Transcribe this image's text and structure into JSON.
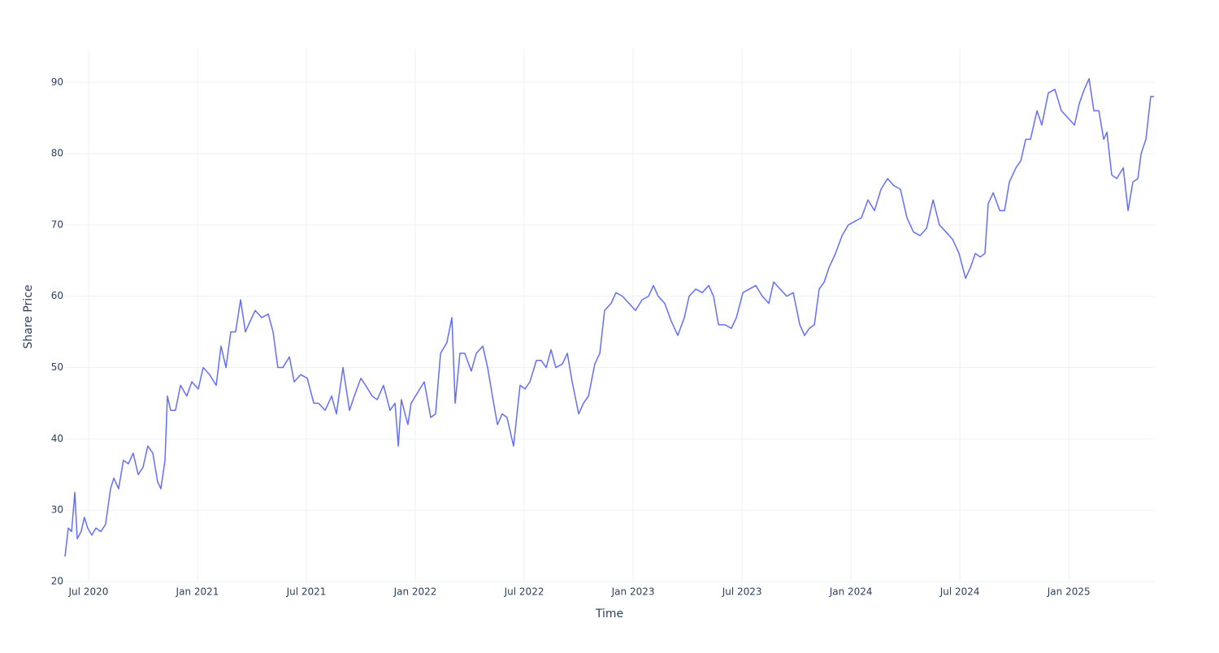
{
  "chart_data": {
    "type": "line",
    "x_label": "Time",
    "y_label": "Share Price",
    "color": "#636efa",
    "grid": true,
    "xlim": [
      2020.392,
      2025.391
    ],
    "xticks": [
      {
        "value": 2020.5,
        "label": "Jul 2020"
      },
      {
        "value": 2021.0,
        "label": "Jan 2021"
      },
      {
        "value": 2021.5,
        "label": "Jul 2021"
      },
      {
        "value": 2022.0,
        "label": "Jan 2022"
      },
      {
        "value": 2022.5,
        "label": "Jul 2022"
      },
      {
        "value": 2023.0,
        "label": "Jan 2023"
      },
      {
        "value": 2023.5,
        "label": "Jul 2023"
      },
      {
        "value": 2024.0,
        "label": "Jan 2024"
      },
      {
        "value": 2024.5,
        "label": "Jul 2024"
      },
      {
        "value": 2025.0,
        "label": "Jan 2025"
      }
    ],
    "ylim": [
      20,
      94.7
    ],
    "yticks": [
      20,
      30,
      40,
      50,
      60,
      70,
      80,
      90
    ],
    "x": [
      2020.392,
      2020.407,
      2020.422,
      2020.437,
      2020.448,
      2020.466,
      2020.481,
      2020.496,
      2020.515,
      2020.534,
      2020.556,
      2020.578,
      2020.601,
      2020.616,
      2020.638,
      2020.66,
      2020.683,
      2020.705,
      2020.728,
      2020.75,
      2020.772,
      2020.795,
      2020.817,
      2020.832,
      2020.851,
      2020.862,
      2020.877,
      2020.899,
      2020.922,
      2020.951,
      2020.974,
      2021.004,
      2021.026,
      2021.056,
      2021.086,
      2021.108,
      2021.131,
      2021.153,
      2021.175,
      2021.198,
      2021.22,
      2021.242,
      2021.265,
      2021.295,
      2021.325,
      2021.347,
      2021.369,
      2021.392,
      2021.422,
      2021.444,
      2021.474,
      2021.504,
      2021.534,
      2021.556,
      2021.586,
      2021.616,
      2021.638,
      2021.668,
      2021.698,
      2021.72,
      2021.75,
      2021.772,
      2021.802,
      2021.825,
      2021.854,
      2021.884,
      2021.907,
      2021.922,
      2021.936,
      2021.966,
      2021.981,
      2022.011,
      2022.041,
      2022.071,
      2022.093,
      2022.116,
      2022.145,
      2022.168,
      2022.183,
      2022.205,
      2022.227,
      2022.257,
      2022.28,
      2022.31,
      2022.332,
      2022.354,
      2022.377,
      2022.399,
      2022.421,
      2022.451,
      2022.481,
      2022.504,
      2022.526,
      2022.556,
      2022.578,
      2022.601,
      2022.623,
      2022.645,
      2022.675,
      2022.698,
      2022.72,
      2022.75,
      2022.772,
      2022.795,
      2022.824,
      2022.847,
      2022.869,
      2022.899,
      2022.921,
      2022.951,
      2022.981,
      2023.011,
      2023.041,
      2023.071,
      2023.093,
      2023.115,
      2023.145,
      2023.175,
      2023.205,
      2023.235,
      2023.257,
      2023.287,
      2023.317,
      2023.347,
      2023.369,
      2023.392,
      2023.421,
      2023.451,
      2023.474,
      2023.504,
      2023.533,
      2023.563,
      2023.593,
      2023.623,
      2023.645,
      2023.675,
      2023.705,
      2023.735,
      2023.765,
      2023.787,
      2023.809,
      2023.832,
      2023.854,
      2023.877,
      2023.899,
      2023.929,
      2023.959,
      2023.988,
      2024.018,
      2024.048,
      2024.078,
      2024.108,
      2024.138,
      2024.168,
      2024.197,
      2024.227,
      2024.257,
      2024.287,
      2024.317,
      2024.347,
      2024.377,
      2024.406,
      2024.436,
      2024.466,
      2024.496,
      2024.526,
      2024.548,
      2024.571,
      2024.593,
      2024.615,
      2024.63,
      2024.653,
      2024.683,
      2024.705,
      2024.727,
      2024.757,
      2024.78,
      2024.802,
      2024.824,
      2024.854,
      2024.876,
      2024.906,
      2024.936,
      2024.966,
      2024.996,
      2025.026,
      2025.048,
      2025.071,
      2025.093,
      2025.115,
      2025.138,
      2025.16,
      2025.175,
      2025.197,
      2025.22,
      2025.25,
      2025.272,
      2025.294,
      2025.317,
      2025.332,
      2025.354,
      2025.376,
      2025.391
    ],
    "values": [
      23.5,
      27.5,
      27,
      32.5,
      26,
      27,
      29,
      27.5,
      26.5,
      27.5,
      27,
      28,
      33,
      34.5,
      33,
      37,
      36.5,
      38,
      35,
      36,
      39,
      38,
      34,
      33,
      37,
      46,
      44,
      44,
      47.5,
      46,
      48,
      47,
      50,
      49,
      47.5,
      53,
      50,
      55,
      55,
      59.5,
      55,
      56.5,
      58,
      57,
      57.5,
      55,
      50,
      50,
      51.5,
      48,
      49,
      48.5,
      45,
      45,
      44,
      46,
      43.5,
      50,
      44,
      46,
      48.5,
      47.5,
      46,
      45.5,
      47.5,
      44,
      45,
      39,
      45.5,
      42,
      45,
      46.5,
      48,
      43,
      43.5,
      52,
      53.5,
      57,
      45,
      52,
      52,
      49.5,
      52,
      53,
      50,
      46,
      42,
      43.5,
      43,
      39,
      47.5,
      47,
      48,
      51,
      51,
      50,
      52.5,
      50,
      50.5,
      52,
      48,
      43.5,
      45,
      46,
      50.5,
      52,
      58,
      59,
      60.5,
      60,
      59,
      58,
      59.5,
      60,
      61.5,
      60,
      59,
      56.5,
      54.5,
      57,
      60,
      61,
      60.5,
      61.5,
      60,
      56,
      56,
      55.5,
      57,
      60.5,
      61,
      61.5,
      60,
      59,
      62,
      61,
      60,
      60.5,
      56,
      54.5,
      55.5,
      56,
      61,
      62,
      64,
      66,
      68.5,
      70,
      70.5,
      71,
      73.5,
      72,
      75,
      76.5,
      75.5,
      75,
      71,
      69,
      68.5,
      69.5,
      73.5,
      70,
      69,
      68,
      66,
      62.5,
      64,
      66,
      65.5,
      66,
      73,
      74.5,
      72,
      72,
      76,
      78,
      79,
      82,
      82,
      86,
      84,
      88.5,
      89,
      86,
      85,
      84,
      87,
      89,
      90.5,
      86,
      86,
      82,
      83,
      77,
      76.5,
      78,
      72,
      76,
      76.5,
      80,
      82,
      88,
      88
    ]
  }
}
